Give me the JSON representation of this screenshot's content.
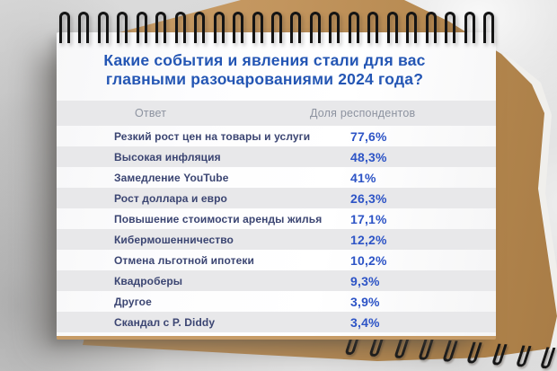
{
  "title": {
    "line1": "Какие события и явления стали для вас",
    "line2": "главными разочарованиями 2024 года?"
  },
  "table": {
    "headers": {
      "answer": "Ответ",
      "share": "Доля респондентов"
    },
    "rows": [
      {
        "label": "Резкий рост цен на товары и услуги",
        "value": "77,6%"
      },
      {
        "label": "Высокая инфляция",
        "value": "48,3%"
      },
      {
        "label": "Замедление YouTube",
        "value": "41%"
      },
      {
        "label": "Рост доллара и евро",
        "value": "26,3%"
      },
      {
        "label": "Повышение стоимости аренды жилья",
        "value": "17,1%"
      },
      {
        "label": "Кибермошенничество",
        "value": "12,2%"
      },
      {
        "label": "Отмена льготной ипотеки",
        "value": "10,2%"
      },
      {
        "label": "Квадроберы",
        "value": "9,3%"
      },
      {
        "label": "Другое",
        "value": "3,9%"
      },
      {
        "label": "Скандал с P. Diddy",
        "value": "3,4%"
      }
    ]
  },
  "chart_data": {
    "type": "table",
    "title": "Какие события и явления стали для вас главными разочарованиями 2024 года?",
    "columns": [
      "Ответ",
      "Доля респондентов"
    ],
    "categories": [
      "Резкий рост цен на товары и услуги",
      "Высокая инфляция",
      "Замедление YouTube",
      "Рост доллара и евро",
      "Повышение стоимости аренды жилья",
      "Кибермошенничество",
      "Отмена льготной ипотеки",
      "Квадроберы",
      "Другое",
      "Скандал с P. Diddy"
    ],
    "values": [
      77.6,
      48.3,
      41,
      26.3,
      17.1,
      12.2,
      10.2,
      9.3,
      3.9,
      3.4
    ],
    "value_labels": [
      "77,6%",
      "48,3%",
      "41%",
      "26,3%",
      "17,1%",
      "12,2%",
      "10,2%",
      "9,3%",
      "3,9%",
      "3,4%"
    ],
    "unit": "%"
  },
  "colors": {
    "title_blue": "#2456b4",
    "value_blue": "#2d54c6",
    "label_navy": "#3b4572",
    "header_grey": "#8d93a0",
    "row_grey": "#e8e8ea",
    "kraft_brown": "#c2955e"
  }
}
